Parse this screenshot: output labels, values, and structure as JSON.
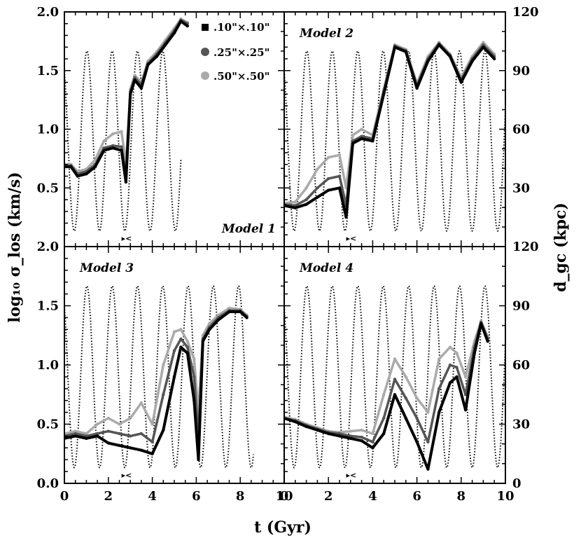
{
  "figure": {
    "x_axis_label": "t (Gyr)",
    "y_axis_label_left": "log₁₀ σ_los (km/s)",
    "y_axis_label_right": "d_gc (kpc)"
  },
  "legend": [
    {
      "label": ".10\"×.10\"",
      "color": "#000000",
      "marker": "square"
    },
    {
      "label": ".25\"×.25\"",
      "color": "#555555",
      "marker": "circle"
    },
    {
      "label": ".50\"×.50\"",
      "color": "#aaaaaa",
      "marker": "circle"
    }
  ],
  "chart_data": [
    {
      "type": "line",
      "title": "Model 1",
      "xlim": [
        0,
        10
      ],
      "ylim": [
        0,
        2.0
      ],
      "ylim_right": [
        0,
        120
      ],
      "x_ticks": [
        "0",
        "2",
        "4",
        "6",
        "8",
        "10"
      ],
      "y_ticks": [
        "0.5",
        "1.0",
        "1.5",
        "2.0"
      ],
      "y_right_ticks": [
        "30",
        "60",
        "90",
        "120"
      ],
      "orbit": {
        "name": "d_gc",
        "period": 1.15,
        "peri_time": 0.45,
        "rmin": 8,
        "rmax": 100,
        "t_end": 5.3
      },
      "series": [
        {
          "name": ".10\"×.10\"",
          "x": [
            0,
            0.3,
            0.6,
            1.0,
            1.4,
            1.8,
            2.2,
            2.6,
            2.8,
            3.0,
            3.2,
            3.5,
            3.8,
            4.2,
            4.6,
            5.0,
            5.3,
            5.6
          ],
          "y": [
            0.68,
            0.68,
            0.6,
            0.62,
            0.68,
            0.82,
            0.84,
            0.82,
            0.55,
            1.3,
            1.42,
            1.35,
            1.55,
            1.62,
            1.72,
            1.82,
            1.92,
            1.88
          ]
        },
        {
          "name": ".25\"×.25\"",
          "x": [
            0,
            0.3,
            0.6,
            1.0,
            1.4,
            1.8,
            2.2,
            2.6,
            2.8,
            3.0,
            3.2,
            3.5,
            3.8,
            4.2,
            4.6,
            5.0,
            5.3,
            5.6
          ],
          "y": [
            0.69,
            0.69,
            0.62,
            0.64,
            0.7,
            0.84,
            0.86,
            0.85,
            0.6,
            1.32,
            1.44,
            1.38,
            1.56,
            1.64,
            1.74,
            1.84,
            1.93,
            1.9
          ]
        },
        {
          "name": ".50\"×.50\"",
          "x": [
            0,
            0.3,
            0.6,
            1.0,
            1.4,
            1.8,
            2.2,
            2.6,
            2.8,
            3.0,
            3.2,
            3.5,
            3.8,
            4.2,
            4.6,
            5.0,
            5.3,
            5.6
          ],
          "y": [
            0.7,
            0.7,
            0.64,
            0.66,
            0.74,
            0.9,
            0.96,
            0.98,
            0.7,
            1.34,
            1.46,
            1.4,
            1.58,
            1.66,
            1.76,
            1.86,
            1.94,
            1.91
          ]
        }
      ]
    },
    {
      "type": "line",
      "title": "Model 2",
      "xlim": [
        0,
        10
      ],
      "ylim": [
        0,
        2.0
      ],
      "ylim_right": [
        0,
        120
      ],
      "x_ticks": [
        "0",
        "2",
        "4",
        "6",
        "8",
        "10"
      ],
      "y_ticks": [
        "0.5",
        "1.0",
        "1.5",
        "2.0"
      ],
      "y_right_ticks": [
        "30",
        "60",
        "90",
        "120"
      ],
      "orbit": {
        "name": "d_gc",
        "period": 1.15,
        "peri_time": 0.45,
        "rmin": 8,
        "rmax": 100,
        "t_end": 10
      },
      "series": [
        {
          "name": ".10\"×.10\"",
          "x": [
            0,
            0.5,
            1.0,
            1.5,
            2.0,
            2.5,
            2.8,
            3.1,
            3.5,
            4.0,
            4.5,
            5.0,
            5.5,
            6.0,
            6.5,
            7.0,
            7.5,
            8.0,
            8.5,
            9.0,
            9.5
          ],
          "y": [
            0.35,
            0.33,
            0.36,
            0.42,
            0.48,
            0.5,
            0.25,
            0.88,
            0.92,
            0.9,
            1.3,
            1.7,
            1.66,
            1.35,
            1.58,
            1.72,
            1.62,
            1.4,
            1.58,
            1.7,
            1.6
          ]
        },
        {
          "name": ".25\"×.25\"",
          "x": [
            0,
            0.5,
            1.0,
            1.5,
            2.0,
            2.5,
            2.8,
            3.1,
            3.5,
            4.0,
            4.5,
            5.0,
            5.5,
            6.0,
            6.5,
            7.0,
            7.5,
            8.0,
            8.5,
            9.0,
            9.5
          ],
          "y": [
            0.36,
            0.35,
            0.4,
            0.5,
            0.58,
            0.6,
            0.35,
            0.9,
            0.94,
            0.92,
            1.32,
            1.71,
            1.67,
            1.37,
            1.6,
            1.73,
            1.63,
            1.42,
            1.6,
            1.72,
            1.62
          ]
        },
        {
          "name": ".50\"×.50\"",
          "x": [
            0,
            0.5,
            1.0,
            1.5,
            2.0,
            2.5,
            2.8,
            3.1,
            3.5,
            4.0,
            4.5,
            5.0,
            5.5,
            6.0,
            6.5,
            7.0,
            7.5,
            8.0,
            8.5,
            9.0,
            9.5
          ],
          "y": [
            0.37,
            0.38,
            0.5,
            0.66,
            0.76,
            0.78,
            0.5,
            0.95,
            1.0,
            0.95,
            1.34,
            1.72,
            1.68,
            1.39,
            1.62,
            1.74,
            1.64,
            1.44,
            1.62,
            1.74,
            1.64
          ]
        }
      ]
    },
    {
      "type": "line",
      "title": "Model 3",
      "xlim": [
        0,
        10
      ],
      "ylim": [
        0,
        2.0
      ],
      "ylim_right": [
        0,
        120
      ],
      "x_ticks": [
        "0",
        "2",
        "4",
        "6",
        "8",
        "10"
      ],
      "y_ticks": [
        "0.0",
        "0.5",
        "1.0",
        "1.5",
        "2.0"
      ],
      "y_right_ticks": [
        "0",
        "30",
        "60",
        "90",
        "120"
      ],
      "orbit": {
        "name": "d_gc",
        "period": 1.15,
        "peri_time": 0.45,
        "rmin": 8,
        "rmax": 100,
        "t_end": 8.6
      },
      "series": [
        {
          "name": ".10\"×.10\"",
          "x": [
            0,
            0.5,
            1.0,
            1.5,
            2.0,
            2.5,
            3.0,
            3.5,
            4.0,
            4.5,
            5.0,
            5.3,
            5.6,
            5.9,
            6.1,
            6.3,
            6.6,
            7.0,
            7.5,
            8.0,
            8.3
          ],
          "y": [
            0.38,
            0.4,
            0.38,
            0.4,
            0.34,
            0.32,
            0.3,
            0.28,
            0.25,
            0.45,
            0.9,
            1.15,
            1.1,
            0.7,
            0.2,
            1.2,
            1.3,
            1.38,
            1.45,
            1.45,
            1.4
          ]
        },
        {
          "name": ".25\"×.25\"",
          "x": [
            0,
            0.5,
            1.0,
            1.5,
            2.0,
            2.5,
            3.0,
            3.5,
            4.0,
            4.5,
            5.0,
            5.3,
            5.6,
            5.9,
            6.1,
            6.3,
            6.6,
            7.0,
            7.5,
            8.0,
            8.3
          ],
          "y": [
            0.4,
            0.42,
            0.4,
            0.42,
            0.44,
            0.42,
            0.4,
            0.42,
            0.35,
            0.75,
            1.12,
            1.22,
            1.15,
            0.9,
            0.4,
            1.22,
            1.32,
            1.4,
            1.46,
            1.46,
            1.41
          ]
        },
        {
          "name": ".50\"×.50\"",
          "x": [
            0,
            0.5,
            1.0,
            1.5,
            2.0,
            2.5,
            3.0,
            3.5,
            4.0,
            4.5,
            5.0,
            5.3,
            5.6,
            5.9,
            6.1,
            6.3,
            6.6,
            7.0,
            7.5,
            8.0,
            8.3
          ],
          "y": [
            0.42,
            0.44,
            0.42,
            0.5,
            0.55,
            0.5,
            0.55,
            0.68,
            0.5,
            1.0,
            1.28,
            1.3,
            1.2,
            1.05,
            0.6,
            1.25,
            1.35,
            1.42,
            1.48,
            1.47,
            1.42
          ]
        }
      ]
    },
    {
      "type": "line",
      "title": "Model 4",
      "xlim": [
        0,
        10
      ],
      "ylim": [
        0,
        2.0
      ],
      "ylim_right": [
        0,
        120
      ],
      "x_ticks": [
        "0",
        "2",
        "4",
        "6",
        "8",
        "10"
      ],
      "y_ticks": [
        "0.0",
        "0.5",
        "1.0",
        "1.5",
        "2.0"
      ],
      "y_right_ticks": [
        "0",
        "30",
        "60",
        "90",
        "120"
      ],
      "orbit": {
        "name": "d_gc",
        "period": 1.15,
        "peri_time": 0.45,
        "rmin": 8,
        "rmax": 100,
        "t_end": 10
      },
      "series": [
        {
          "name": ".10\"×.10\"",
          "x": [
            0,
            0.5,
            1.0,
            1.5,
            2.0,
            2.5,
            3.0,
            3.5,
            4.0,
            4.5,
            5.0,
            5.5,
            6.0,
            6.5,
            7.0,
            7.5,
            7.8,
            8.2,
            8.6,
            8.9,
            9.2
          ],
          "y": [
            0.55,
            0.52,
            0.48,
            0.45,
            0.42,
            0.4,
            0.38,
            0.36,
            0.3,
            0.42,
            0.75,
            0.55,
            0.35,
            0.12,
            0.6,
            0.85,
            0.9,
            0.62,
            1.1,
            1.35,
            1.2
          ]
        },
        {
          "name": ".25\"×.25\"",
          "x": [
            0,
            0.5,
            1.0,
            1.5,
            2.0,
            2.5,
            3.0,
            3.5,
            4.0,
            4.5,
            5.0,
            5.5,
            6.0,
            6.5,
            7.0,
            7.5,
            7.8,
            8.2,
            8.6,
            8.9,
            9.2
          ],
          "y": [
            0.55,
            0.53,
            0.49,
            0.46,
            0.43,
            0.42,
            0.4,
            0.39,
            0.35,
            0.55,
            0.88,
            0.72,
            0.55,
            0.35,
            0.8,
            1.0,
            0.98,
            0.75,
            1.15,
            1.36,
            1.22
          ]
        },
        {
          "name": ".50\"×.50\"",
          "x": [
            0,
            0.5,
            1.0,
            1.5,
            2.0,
            2.5,
            3.0,
            3.5,
            4.0,
            4.5,
            5.0,
            5.5,
            6.0,
            6.5,
            7.0,
            7.5,
            7.8,
            8.2,
            8.6,
            8.9,
            9.2
          ],
          "y": [
            0.56,
            0.54,
            0.5,
            0.47,
            0.44,
            0.43,
            0.44,
            0.45,
            0.42,
            0.75,
            1.05,
            0.9,
            0.72,
            0.6,
            1.05,
            1.15,
            1.1,
            0.9,
            1.2,
            1.37,
            1.24
          ]
        }
      ]
    }
  ]
}
